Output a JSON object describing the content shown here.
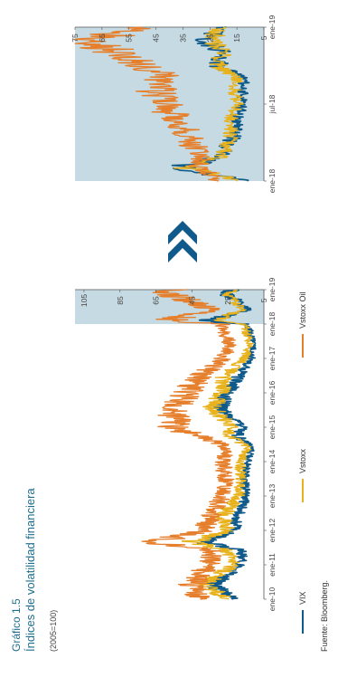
{
  "figure": {
    "label": "Gráfico 1.5",
    "title": "Índices de volatilidad financiera",
    "unit": "(2005=100)",
    "source": "Fuente: Bloomberg.",
    "colors": {
      "VIX": "#0f5a8a",
      "Vstoxx": "#e8b21d",
      "Vstoxx Oil": "#e67f2b",
      "highlight": "#c5dae2",
      "arrow": "#0f5a8a"
    }
  },
  "chart_data": [
    {
      "type": "line",
      "x": [
        "2010-01",
        "2010-06",
        "2011-01",
        "2011-06",
        "2011-09",
        "2012-01",
        "2012-06",
        "2013-01",
        "2013-06",
        "2014-01",
        "2014-06",
        "2014-10",
        "2015-01",
        "2015-08",
        "2016-01",
        "2016-06",
        "2017-01",
        "2017-06",
        "2018-01",
        "2018-02",
        "2018-06",
        "2018-10",
        "2018-12",
        "2019-01"
      ],
      "series": [
        {
          "name": "VIX",
          "values": [
            22,
            33,
            18,
            17,
            40,
            22,
            19,
            15,
            16,
            14,
            12,
            20,
            17,
            30,
            25,
            20,
            12,
            11,
            14,
            37,
            14,
            22,
            28,
            20
          ]
        },
        {
          "name": "Vstoxx",
          "values": [
            25,
            38,
            22,
            25,
            45,
            25,
            28,
            19,
            18,
            18,
            14,
            24,
            23,
            34,
            28,
            28,
            16,
            13,
            16,
            32,
            17,
            23,
            25,
            20
          ]
        },
        {
          "name": "Vstoxx Oil",
          "values": [
            40,
            45,
            36,
            33,
            68,
            38,
            35,
            28,
            26,
            28,
            25,
            42,
            55,
            55,
            48,
            42,
            28,
            24,
            28,
            60,
            34,
            50,
            64,
            48
          ]
        }
      ],
      "xticks": [
        "ene-10",
        "ene-11",
        "ene-12",
        "ene-13",
        "ene-14",
        "ene-15",
        "ene-16",
        "ene-17",
        "ene-18",
        "ene-19"
      ],
      "yticks": [
        5,
        25,
        45,
        65,
        85,
        105
      ],
      "ylim": [
        5,
        110
      ],
      "legend": [
        "VIX",
        "Vstoxx",
        "Vstoxx Oil"
      ],
      "legend_placement": "bottom",
      "highlight_range": [
        "2018-01",
        "2019-01"
      ]
    },
    {
      "type": "line",
      "x": [
        "2018-01",
        "2018-02",
        "2018-03",
        "2018-04",
        "2018-05",
        "2018-06",
        "2018-07",
        "2018-08",
        "2018-09",
        "2018-10",
        "2018-11",
        "2018-12",
        "2019-01"
      ],
      "series": [
        {
          "name": "VIX",
          "values": [
            11,
            37,
            20,
            18,
            14,
            15,
            13,
            13,
            12,
            22,
            20,
            28,
            19
          ]
        },
        {
          "name": "Vstoxx",
          "values": [
            13,
            33,
            20,
            18,
            17,
            17,
            15,
            16,
            15,
            22,
            20,
            25,
            20
          ]
        },
        {
          "name": "Vstoxx Oil",
          "values": [
            24,
            28,
            30,
            32,
            35,
            38,
            42,
            45,
            42,
            50,
            60,
            70,
            50
          ]
        }
      ],
      "xticks": [
        "ene-18",
        "jul-18",
        "ene-19"
      ],
      "yticks": [
        5,
        15,
        25,
        35,
        45,
        55,
        65,
        75
      ],
      "ylim": [
        5,
        75
      ],
      "background": "#c5dae2"
    }
  ]
}
